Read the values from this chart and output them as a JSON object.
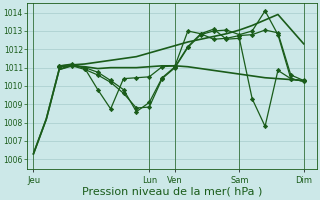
{
  "bg_color": "#cce8e8",
  "grid_color": "#a8cccc",
  "line_color": "#1a5c1a",
  "xlabel": "Pression niveau de la mer( hPa )",
  "xlabel_fontsize": 8,
  "ylim": [
    1005.5,
    1014.5
  ],
  "yticks": [
    1006,
    1007,
    1008,
    1009,
    1010,
    1011,
    1012,
    1013,
    1014
  ],
  "day_labels": [
    "Jeu",
    "Lun",
    "Ven",
    "Sam",
    "Dim"
  ],
  "day_positions": [
    0,
    9,
    11,
    16,
    21
  ],
  "xlim": [
    -0.5,
    22
  ],
  "vline_positions": [
    0,
    9,
    11,
    16,
    21
  ],
  "series": [
    {
      "x": [
        0,
        1,
        2,
        3,
        4,
        5,
        6,
        7,
        8,
        9,
        10,
        11,
        12,
        13,
        14,
        15,
        16,
        17,
        18,
        19,
        20,
        21
      ],
      "y": [
        1006.3,
        1008.2,
        1010.9,
        1011.1,
        1011.05,
        1010.95,
        1011.0,
        1011.0,
        1011.0,
        1011.05,
        1011.1,
        1011.1,
        1011.05,
        1010.95,
        1010.85,
        1010.75,
        1010.65,
        1010.55,
        1010.45,
        1010.4,
        1010.35,
        1010.3
      ],
      "marker": null,
      "linewidth": 1.2,
      "linestyle": "-",
      "zorder": 3
    },
    {
      "x": [
        0,
        1,
        2,
        3,
        4,
        5,
        6,
        7,
        8,
        9,
        10,
        11,
        12,
        13,
        14,
        15,
        16,
        17,
        18,
        19,
        20,
        21
      ],
      "y": [
        1006.3,
        1008.2,
        1010.9,
        1011.15,
        1011.2,
        1011.3,
        1011.4,
        1011.5,
        1011.6,
        1011.8,
        1012.0,
        1012.2,
        1012.4,
        1012.55,
        1012.7,
        1012.85,
        1013.05,
        1013.3,
        1013.6,
        1013.9,
        1013.1,
        1012.3
      ],
      "marker": null,
      "linewidth": 1.2,
      "linestyle": "-",
      "zorder": 3
    },
    {
      "x": [
        2,
        3,
        4,
        5,
        6,
        7,
        8,
        9,
        10,
        11,
        12,
        13,
        14,
        15,
        16,
        17,
        18,
        19,
        20,
        21
      ],
      "y": [
        1011.05,
        1011.1,
        1010.9,
        1010.6,
        1010.2,
        1009.6,
        1008.8,
        1008.85,
        1010.4,
        1011.0,
        1012.1,
        1012.8,
        1013.0,
        1013.05,
        1012.8,
        1013.0,
        1014.1,
        1012.8,
        1010.4,
        1010.25
      ],
      "marker": "D",
      "markersize": 2.2,
      "linewidth": 0.9,
      "linestyle": "-",
      "zorder": 4
    },
    {
      "x": [
        2,
        3,
        4,
        5,
        6,
        7,
        8,
        9,
        10,
        11,
        12,
        13,
        14,
        15,
        16,
        17,
        18,
        19,
        20,
        21
      ],
      "y": [
        1011.1,
        1011.15,
        1011.0,
        1010.75,
        1010.3,
        1009.8,
        1008.6,
        1009.1,
        1010.45,
        1011.05,
        1012.15,
        1012.85,
        1012.55,
        1012.6,
        1012.75,
        1012.8,
        1013.05,
        1012.9,
        1010.6,
        1010.3
      ],
      "marker": "D",
      "markersize": 2.2,
      "linewidth": 0.9,
      "linestyle": "-",
      "zorder": 4
    },
    {
      "x": [
        2,
        3,
        4,
        5,
        6,
        7,
        8,
        9,
        10,
        11,
        12,
        13,
        14,
        15,
        16,
        17,
        18,
        19,
        20,
        21
      ],
      "y": [
        1011.1,
        1011.2,
        1010.95,
        1009.8,
        1008.75,
        1010.4,
        1010.45,
        1010.5,
        1011.05,
        1011.1,
        1013.0,
        1012.85,
        1013.1,
        1012.55,
        1012.6,
        1009.3,
        1007.8,
        1010.85,
        1010.4,
        1010.25
      ],
      "marker": "D",
      "markersize": 2.2,
      "linewidth": 0.9,
      "linestyle": "-",
      "zorder": 4
    }
  ]
}
